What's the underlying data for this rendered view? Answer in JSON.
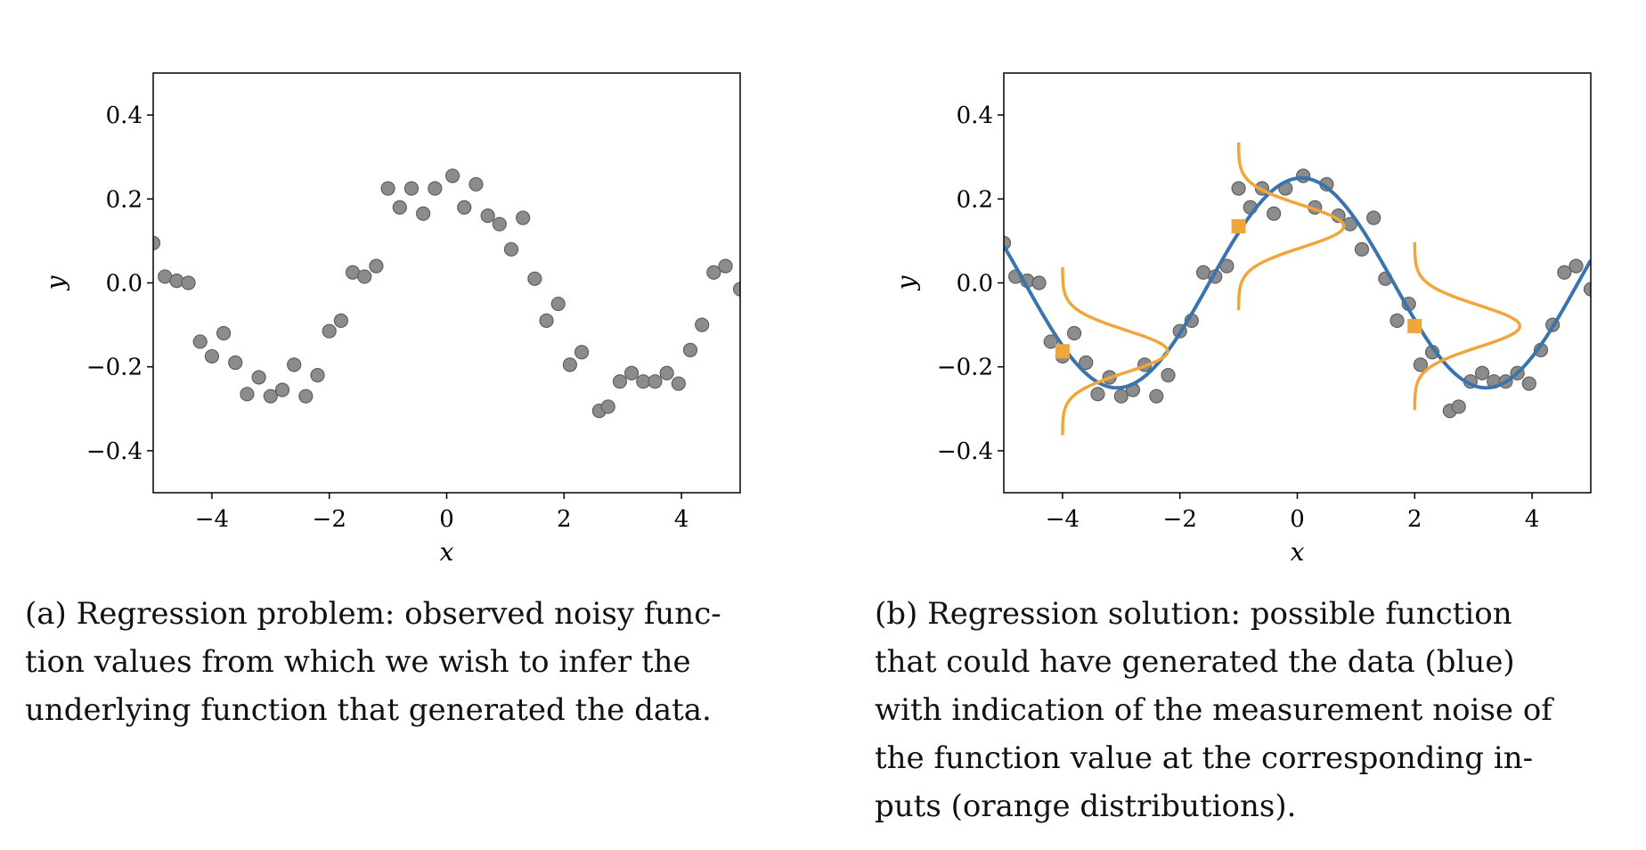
{
  "chart_data": [
    {
      "type": "scatter",
      "panel": "a",
      "xlabel": "x",
      "ylabel": "y",
      "xlim": [
        -5,
        5
      ],
      "ylim": [
        -0.5,
        0.5
      ],
      "xticks": [
        -4,
        -2,
        0,
        2,
        4
      ],
      "xtick_labels": [
        "−4",
        "−2",
        "0",
        "2",
        "4"
      ],
      "yticks": [
        -0.4,
        -0.2,
        0.0,
        0.2,
        0.4
      ],
      "ytick_labels": [
        "−0.4",
        "−0.2",
        "0.0",
        "0.2",
        "0.4"
      ],
      "grid": false,
      "series": [
        {
          "role": "observations",
          "color": "#8c8c8c",
          "x": [
            -5.0,
            -4.8,
            -4.6,
            -4.4,
            -4.2,
            -4.0,
            -3.8,
            -3.6,
            -3.4,
            -3.2,
            -3.0,
            -2.8,
            -2.6,
            -2.4,
            -2.2,
            -2.0,
            -1.8,
            -1.6,
            -1.4,
            -1.2,
            -1.0,
            -0.8,
            -0.6,
            -0.4,
            -0.2,
            0.1,
            0.3,
            0.5,
            0.7,
            0.9,
            1.1,
            1.3,
            1.5,
            1.7,
            1.9,
            2.1,
            2.3,
            2.6,
            2.75,
            2.95,
            3.15,
            3.35,
            3.55,
            3.75,
            3.95,
            4.15,
            4.35,
            4.55,
            4.75,
            5.0
          ],
          "y": [
            0.095,
            0.015,
            0.005,
            0.0,
            -0.14,
            -0.175,
            -0.12,
            -0.19,
            -0.265,
            -0.225,
            -0.27,
            -0.255,
            -0.195,
            -0.27,
            -0.22,
            -0.115,
            -0.09,
            0.025,
            0.015,
            0.04,
            0.225,
            0.18,
            0.225,
            0.165,
            0.225,
            0.255,
            0.18,
            0.235,
            0.16,
            0.14,
            0.08,
            0.155,
            0.01,
            -0.09,
            -0.05,
            -0.195,
            -0.165,
            -0.305,
            -0.295,
            -0.235,
            -0.215,
            -0.235,
            -0.235,
            -0.215,
            -0.24,
            -0.16,
            -0.1,
            0.025,
            0.04,
            -0.015
          ]
        }
      ]
    },
    {
      "type": "scatter",
      "panel": "b",
      "xlabel": "x",
      "ylabel": "y",
      "xlim": [
        -5,
        5
      ],
      "ylim": [
        -0.5,
        0.5
      ],
      "xticks": [
        -4,
        -2,
        0,
        2,
        4
      ],
      "xtick_labels": [
        "−4",
        "−2",
        "0",
        "2",
        "4"
      ],
      "yticks": [
        -0.4,
        -0.2,
        0.0,
        0.2,
        0.4
      ],
      "ytick_labels": [
        "−0.4",
        "−0.2",
        "0.0",
        "0.2",
        "0.4"
      ],
      "grid": false,
      "series": [
        {
          "role": "observations",
          "color": "#8c8c8c",
          "x": [
            -5.0,
            -4.8,
            -4.6,
            -4.4,
            -4.2,
            -4.0,
            -3.8,
            -3.6,
            -3.4,
            -3.2,
            -3.0,
            -2.8,
            -2.6,
            -2.4,
            -2.2,
            -2.0,
            -1.8,
            -1.6,
            -1.4,
            -1.2,
            -1.0,
            -0.8,
            -0.6,
            -0.4,
            -0.2,
            0.1,
            0.3,
            0.5,
            0.7,
            0.9,
            1.1,
            1.3,
            1.5,
            1.7,
            1.9,
            2.1,
            2.3,
            2.6,
            2.75,
            2.95,
            3.15,
            3.35,
            3.55,
            3.75,
            3.95,
            4.15,
            4.35,
            4.55,
            4.75,
            5.0
          ],
          "y": [
            0.095,
            0.015,
            0.005,
            0.0,
            -0.14,
            -0.175,
            -0.12,
            -0.19,
            -0.265,
            -0.225,
            -0.27,
            -0.255,
            -0.195,
            -0.27,
            -0.22,
            -0.115,
            -0.09,
            0.025,
            0.015,
            0.04,
            0.225,
            0.18,
            0.225,
            0.165,
            0.225,
            0.255,
            0.18,
            0.235,
            0.16,
            0.14,
            0.08,
            0.155,
            0.01,
            -0.09,
            -0.05,
            -0.195,
            -0.165,
            -0.305,
            -0.295,
            -0.235,
            -0.215,
            -0.235,
            -0.235,
            -0.215,
            -0.24,
            -0.16,
            -0.1,
            0.025,
            0.04,
            -0.015
          ]
        },
        {
          "role": "function",
          "type": "line",
          "color": "#3a74ad",
          "function": "0.25 * sin(x + 1.5)",
          "x_range": [
            -5,
            5
          ]
        },
        {
          "role": "noise-distribution",
          "color": "#f0a63a",
          "inputs": [
            -4,
            -1,
            2
          ],
          "means": [
            -0.163,
            0.135,
            -0.103
          ],
          "std": 0.05,
          "y_extent": 0.2
        }
      ]
    }
  ],
  "captions": {
    "a": [
      "(a) Regression problem: observed noisy func-",
      "tion values from which we wish to infer the",
      "underlying function that generated the data."
    ],
    "b": [
      "(b) Regression solution: possible function",
      "that could have generated the data (blue)",
      "with indication of the measurement noise of",
      "the function value at the corresponding in-",
      "puts (orange distributions)."
    ]
  }
}
